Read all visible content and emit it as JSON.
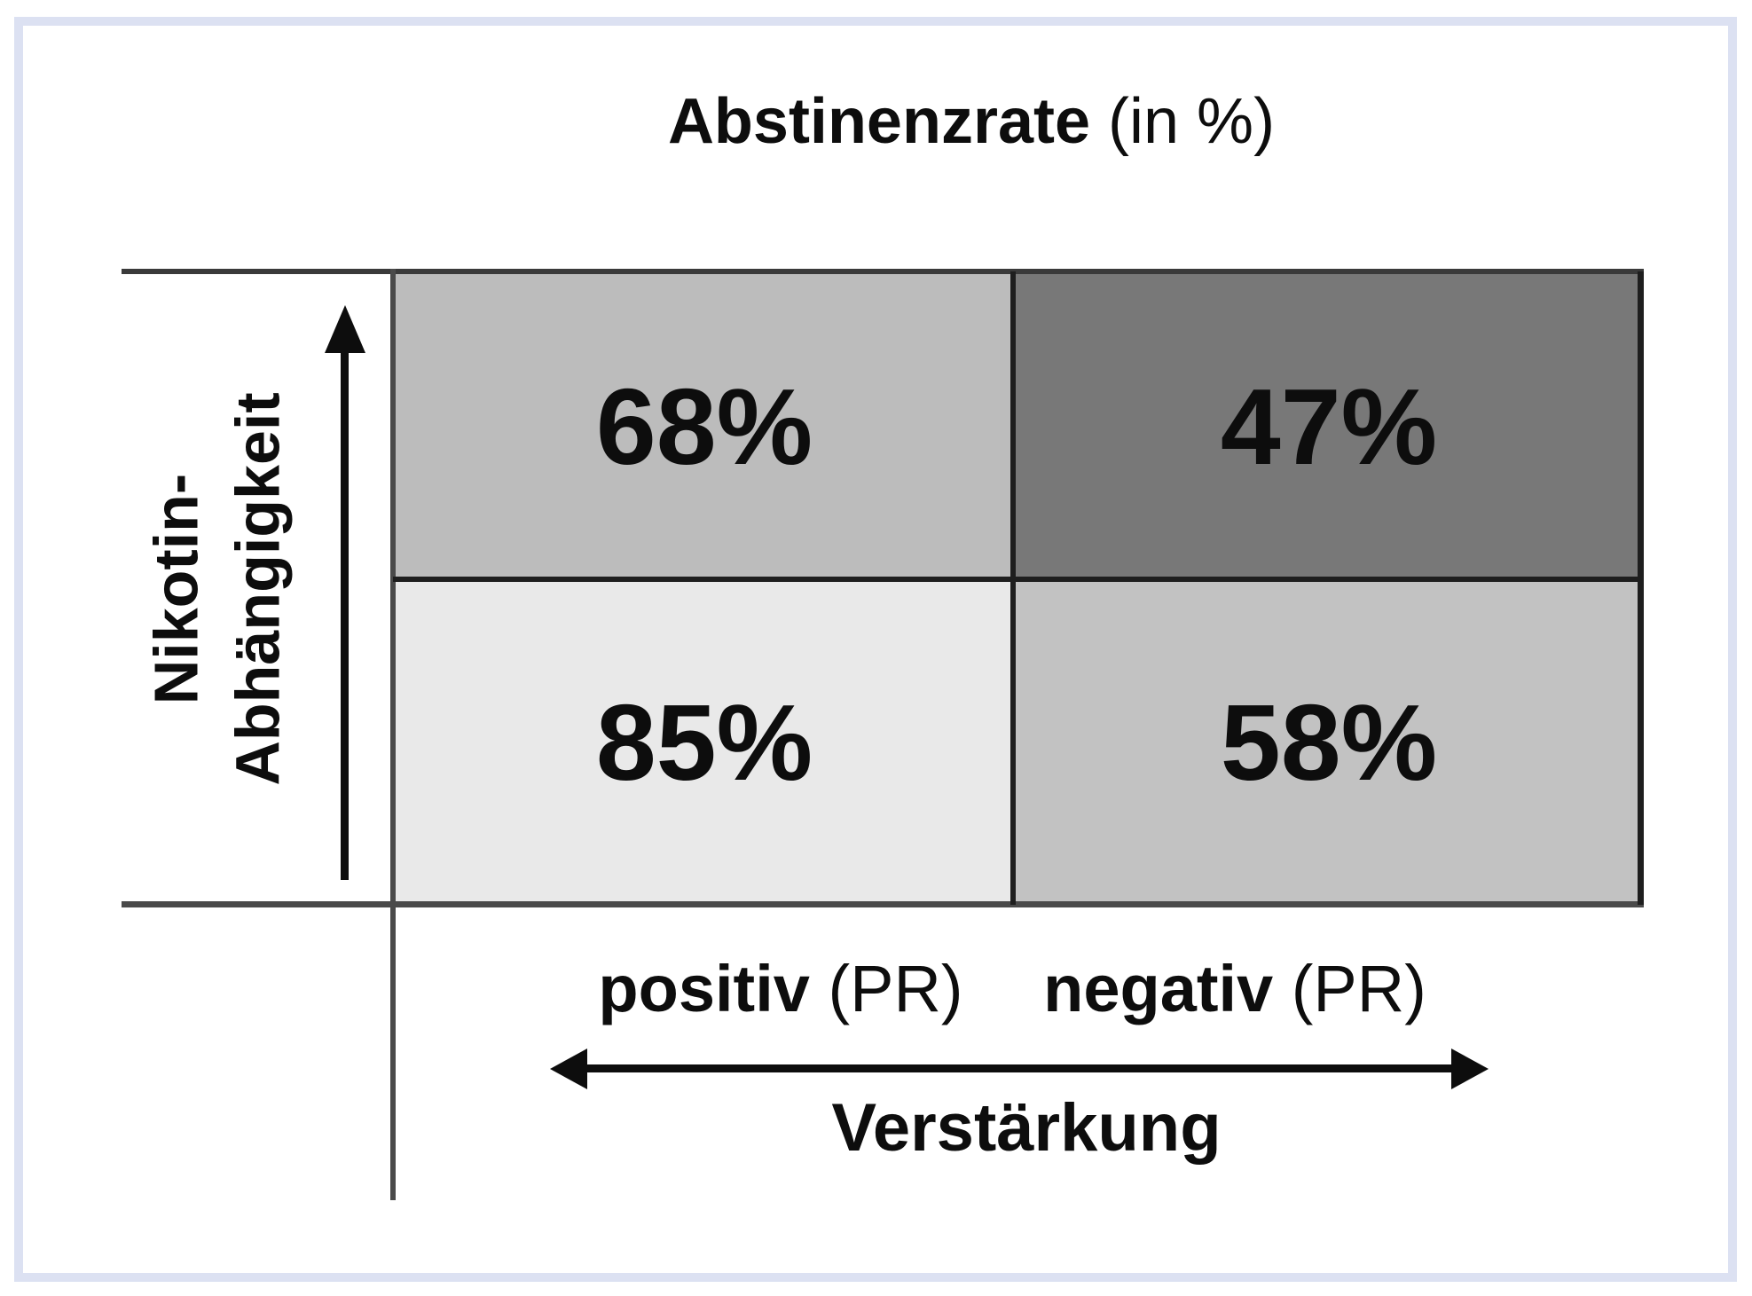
{
  "title": {
    "main": "Abstinenzrate",
    "suffix": " (in %)"
  },
  "y_axis": {
    "label_line1": "Nikotin-",
    "label_line2": "Abhängigkeit",
    "direction": "arrow pointing up"
  },
  "x_axis": {
    "left_bold": "positiv",
    "left_suffix": " (PR)",
    "right_bold": "negativ",
    "right_suffix": " (PR)",
    "title": "Verstärkung",
    "direction": "double-headed horizontal arrow"
  },
  "matrix": {
    "cells": {
      "top_left": {
        "value": "68%",
        "bg": "#bcbcbc"
      },
      "top_right": {
        "value": "47%",
        "bg": "#787878"
      },
      "bottom_left": {
        "value": "85%",
        "bg": "#e9e9e9"
      },
      "bottom_right": {
        "value": "58%",
        "bg": "#c2c2c2"
      }
    }
  },
  "colors": {
    "frame": "#dce1f2",
    "grid_line": "#1e1e1e",
    "axis_line": "#4a4a4a",
    "text": "#0d0d0d"
  },
  "chart_data": {
    "type": "heatmap",
    "title": "Abstinenzrate (in %)",
    "x_axis_label": "Verstärkung",
    "x_categories": [
      "positiv (PR)",
      "negativ (PR)"
    ],
    "y_axis_label": "Nikotin-Abhängigkeit",
    "y_axis_note": "arrow indicates increasing Nikotin-Abhängigkeit upward",
    "rows": [
      {
        "values_percent": [
          68,
          47
        ]
      },
      {
        "values_percent": [
          85,
          58
        ]
      }
    ],
    "values_unit": "%",
    "legend_position": "none",
    "grid": true
  }
}
